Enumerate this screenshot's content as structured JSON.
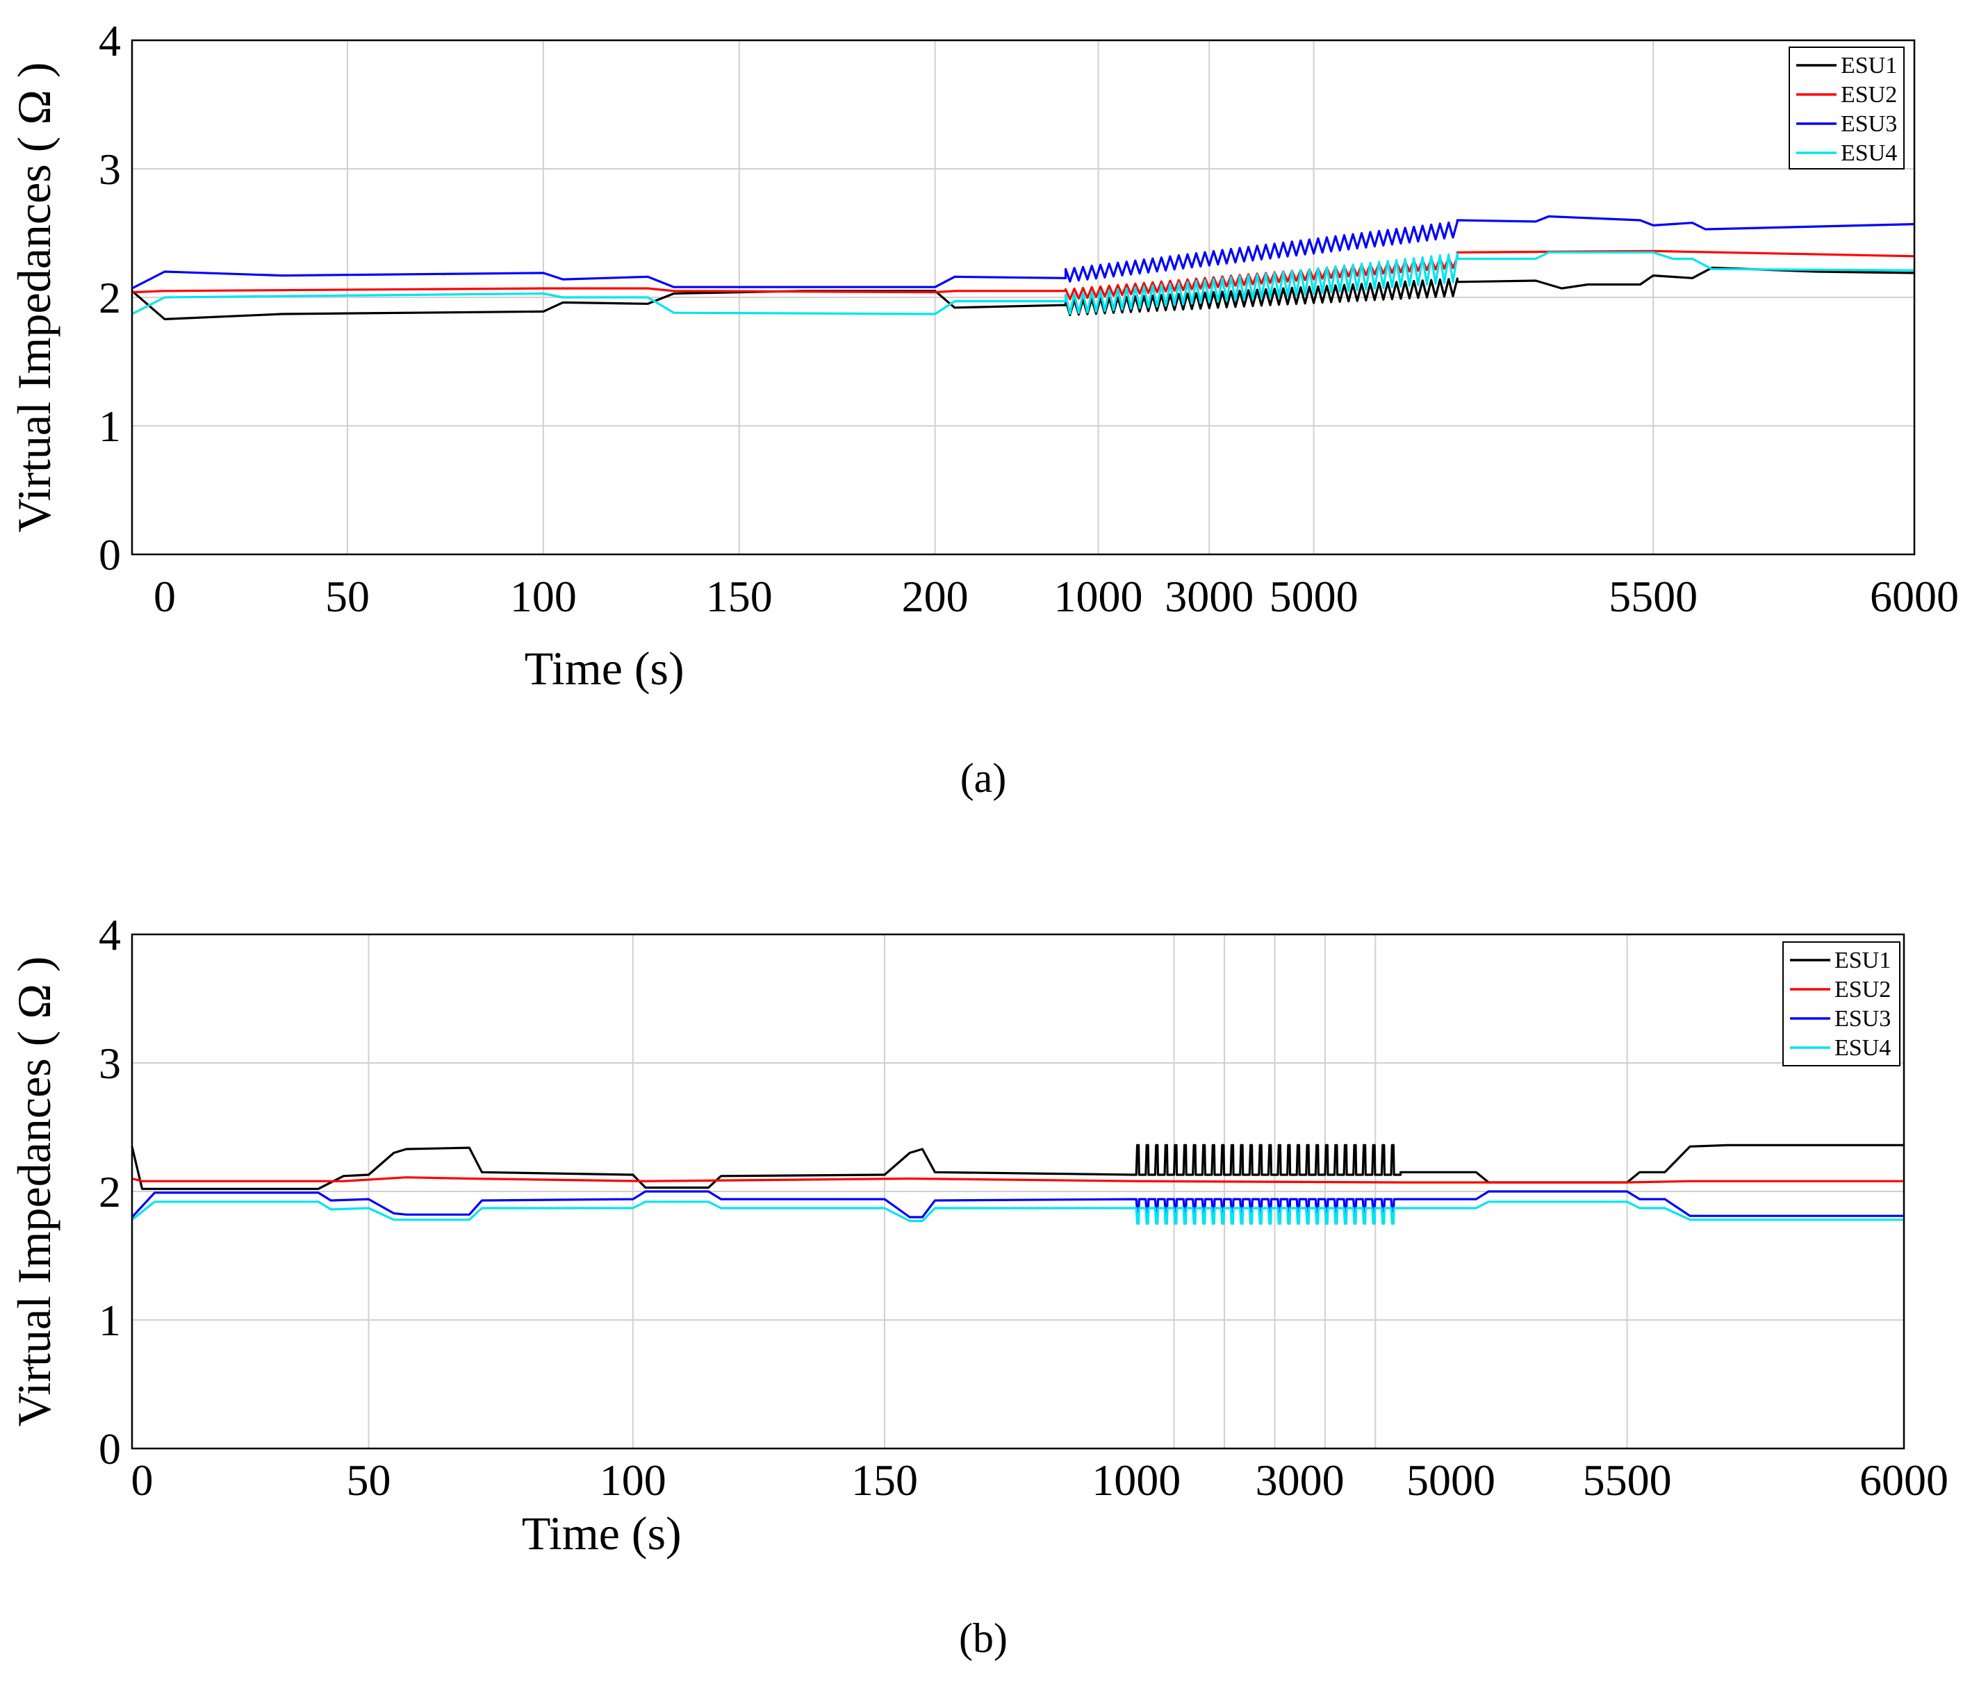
{
  "chart_data": [
    {
      "type": "line",
      "panel": "(a)",
      "caption": "(a)",
      "xlabel": "Time (s)",
      "ylabel": "Virtual Impedances ( Ω )",
      "ylim": [
        0,
        4
      ],
      "y_ticks": [
        "0",
        "1",
        "2",
        "3",
        "4"
      ],
      "x_ticks": [
        "0",
        "50",
        "100",
        "150",
        "200",
        "1000",
        "3000",
        "5000",
        "5500",
        "6000"
      ],
      "grid": true,
      "legend_position": "top-right",
      "series": [
        {
          "name": "ESU1",
          "color": "#000000",
          "points": [
            [
              -0.03,
              2.05
            ],
            [
              0.02,
              1.83
            ],
            [
              0.2,
              1.87
            ],
            [
              0.6,
              1.89
            ],
            [
              0.63,
              1.96
            ],
            [
              0.76,
              1.95
            ],
            [
              0.8,
              2.03
            ],
            [
              1.0,
              2.05
            ],
            [
              1.2,
              2.05
            ],
            [
              1.23,
              1.92
            ],
            [
              1.4,
              1.94
            ]
          ],
          "noise": {
            "range": [
              1.4,
              2.0
            ],
            "start": [
              1.95,
              1.9
            ],
            "end": [
              2.12,
              2.05
            ],
            "amplitude": 0.13
          },
          "tail": [
            [
              2.0,
              2.12
            ],
            [
              2.12,
              2.13
            ],
            [
              2.16,
              2.07
            ],
            [
              2.2,
              2.1
            ],
            [
              2.28,
              2.1
            ],
            [
              2.3,
              2.17
            ],
            [
              2.36,
              2.15
            ],
            [
              2.39,
              2.23
            ],
            [
              2.55,
              2.2
            ],
            [
              2.7,
              2.19
            ]
          ]
        },
        {
          "name": "ESU2",
          "color": "#ff0000",
          "points": [
            [
              -0.03,
              2.04
            ],
            [
              0.02,
              2.05
            ],
            [
              0.6,
              2.07
            ],
            [
              0.76,
              2.07
            ],
            [
              0.8,
              2.05
            ],
            [
              1.2,
              2.04
            ],
            [
              1.23,
              2.05
            ],
            [
              1.4,
              2.05
            ]
          ],
          "noise": {
            "range": [
              1.4,
              2.0
            ],
            "start": [
              2.05,
              2.0
            ],
            "end": [
              2.3,
              2.25
            ],
            "amplitude": 0.06
          },
          "tail": [
            [
              2.0,
              2.35
            ],
            [
              2.3,
              2.36
            ],
            [
              2.7,
              2.32
            ]
          ]
        },
        {
          "name": "ESU3",
          "color": "#0000ff",
          "points": [
            [
              -0.03,
              2.07
            ],
            [
              0.02,
              2.2
            ],
            [
              0.2,
              2.17
            ],
            [
              0.6,
              2.19
            ],
            [
              0.63,
              2.14
            ],
            [
              0.76,
              2.16
            ],
            [
              0.8,
              2.08
            ],
            [
              1.2,
              2.08
            ],
            [
              1.23,
              2.16
            ],
            [
              1.4,
              2.15
            ]
          ],
          "noise": {
            "range": [
              1.4,
              2.0
            ],
            "start": [
              2.2,
              2.15
            ],
            "end": [
              2.57,
              2.5
            ],
            "amplitude": 0.1
          },
          "tail": [
            [
              2.0,
              2.6
            ],
            [
              2.12,
              2.59
            ],
            [
              2.14,
              2.63
            ],
            [
              2.28,
              2.6
            ],
            [
              2.3,
              2.56
            ],
            [
              2.36,
              2.58
            ],
            [
              2.38,
              2.53
            ],
            [
              2.7,
              2.57
            ]
          ]
        },
        {
          "name": "ESU4",
          "color": "#00e5f0",
          "points": [
            [
              -0.03,
              1.87
            ],
            [
              0.02,
              2.0
            ],
            [
              0.6,
              2.03
            ],
            [
              0.63,
              2.0
            ],
            [
              0.76,
              2.0
            ],
            [
              0.8,
              1.88
            ],
            [
              1.2,
              1.87
            ],
            [
              1.23,
              1.97
            ],
            [
              1.4,
              1.97
            ]
          ],
          "noise": {
            "range": [
              1.4,
              2.0
            ],
            "start": [
              2.0,
              1.9
            ],
            "end": [
              2.32,
              2.15
            ],
            "amplitude": 0.1
          },
          "tail": [
            [
              2.0,
              2.3
            ],
            [
              2.12,
              2.3
            ],
            [
              2.14,
              2.35
            ],
            [
              2.3,
              2.35
            ],
            [
              2.33,
              2.3
            ],
            [
              2.36,
              2.3
            ],
            [
              2.39,
              2.22
            ],
            [
              2.7,
              2.21
            ]
          ]
        }
      ]
    },
    {
      "type": "line",
      "panel": "(b)",
      "caption": "(b)",
      "xlabel": "Time (s)",
      "ylabel": "Virtual Impedances ( Ω )",
      "ylim": [
        0,
        4
      ],
      "y_ticks": [
        "0",
        "1",
        "2",
        "3",
        "4"
      ],
      "x_ticks": [
        "0",
        "50",
        "100",
        "150",
        "1000",
        "3000",
        "5000",
        "5500",
        "6000"
      ],
      "grid": true,
      "legend_position": "top-right",
      "series": [
        {
          "name": "ESU1",
          "color": "#000000",
          "points": [
            [
              -0.04,
              2.35
            ],
            [
              0.0,
              2.02
            ],
            [
              0.7,
              2.02
            ],
            [
              0.8,
              2.12
            ],
            [
              0.9,
              2.13
            ],
            [
              1.0,
              2.3
            ],
            [
              1.05,
              2.33
            ],
            [
              1.3,
              2.34
            ],
            [
              1.35,
              2.15
            ],
            [
              1.95,
              2.13
            ],
            [
              2.0,
              2.03
            ],
            [
              2.25,
              2.03
            ],
            [
              2.3,
              2.12
            ],
            [
              2.95,
              2.13
            ],
            [
              3.05,
              2.3
            ],
            [
              3.1,
              2.33
            ],
            [
              3.15,
              2.15
            ],
            [
              3.95,
              2.13
            ]
          ],
          "spikes": {
            "range": [
              3.95,
              5.0
            ],
            "base": 2.13,
            "peak": 2.36,
            "count": 28
          },
          "tail": [
            [
              5.0,
              2.15
            ],
            [
              5.3,
              2.15
            ],
            [
              5.35,
              2.07
            ],
            [
              5.9,
              2.07
            ],
            [
              5.95,
              2.15
            ],
            [
              6.05,
              2.15
            ],
            [
              6.15,
              2.35
            ],
            [
              6.3,
              2.36
            ],
            [
              7.0,
              2.36
            ]
          ]
        },
        {
          "name": "ESU2",
          "color": "#ff0000",
          "points": [
            [
              -0.04,
              2.1
            ],
            [
              0.0,
              2.08
            ],
            [
              0.8,
              2.08
            ],
            [
              1.05,
              2.11
            ],
            [
              1.3,
              2.1
            ],
            [
              2.0,
              2.08
            ],
            [
              3.05,
              2.1
            ],
            [
              3.95,
              2.08
            ],
            [
              5.0,
              2.07
            ],
            [
              5.35,
              2.07
            ],
            [
              5.9,
              2.07
            ],
            [
              6.15,
              2.08
            ],
            [
              7.0,
              2.08
            ]
          ]
        },
        {
          "name": "ESU3",
          "color": "#0000ff",
          "points": [
            [
              -0.04,
              1.8
            ],
            [
              0.05,
              1.99
            ],
            [
              0.7,
              1.99
            ],
            [
              0.75,
              1.93
            ],
            [
              0.9,
              1.94
            ],
            [
              1.0,
              1.83
            ],
            [
              1.05,
              1.82
            ],
            [
              1.3,
              1.82
            ],
            [
              1.35,
              1.93
            ],
            [
              1.95,
              1.94
            ],
            [
              2.0,
              2.0
            ],
            [
              2.25,
              2.0
            ],
            [
              2.3,
              1.94
            ],
            [
              2.95,
              1.94
            ],
            [
              3.05,
              1.8
            ],
            [
              3.1,
              1.8
            ],
            [
              3.15,
              1.93
            ],
            [
              3.95,
              1.94
            ]
          ],
          "spikes": {
            "range": [
              3.95,
              5.0
            ],
            "base": 1.94,
            "peak": 1.84,
            "count": 28
          },
          "tail": [
            [
              5.0,
              1.94
            ],
            [
              5.3,
              1.94
            ],
            [
              5.35,
              2.0
            ],
            [
              5.9,
              2.0
            ],
            [
              5.95,
              1.94
            ],
            [
              6.05,
              1.94
            ],
            [
              6.15,
              1.81
            ],
            [
              7.0,
              1.81
            ]
          ]
        },
        {
          "name": "ESU4",
          "color": "#00e5f0",
          "points": [
            [
              -0.04,
              1.78
            ],
            [
              0.05,
              1.92
            ],
            [
              0.7,
              1.92
            ],
            [
              0.75,
              1.86
            ],
            [
              0.9,
              1.87
            ],
            [
              1.0,
              1.78
            ],
            [
              1.05,
              1.78
            ],
            [
              1.3,
              1.78
            ],
            [
              1.35,
              1.87
            ],
            [
              1.95,
              1.87
            ],
            [
              2.0,
              1.92
            ],
            [
              2.25,
              1.92
            ],
            [
              2.3,
              1.87
            ],
            [
              2.95,
              1.87
            ],
            [
              3.05,
              1.77
            ],
            [
              3.1,
              1.77
            ],
            [
              3.15,
              1.87
            ],
            [
              3.95,
              1.87
            ]
          ],
          "spikes": {
            "range": [
              3.95,
              5.0
            ],
            "base": 1.87,
            "peak": 1.75,
            "count": 28
          },
          "tail": [
            [
              5.0,
              1.87
            ],
            [
              5.3,
              1.87
            ],
            [
              5.35,
              1.92
            ],
            [
              5.9,
              1.92
            ],
            [
              5.95,
              1.87
            ],
            [
              6.05,
              1.87
            ],
            [
              6.15,
              1.78
            ],
            [
              7.0,
              1.78
            ]
          ]
        }
      ]
    }
  ]
}
